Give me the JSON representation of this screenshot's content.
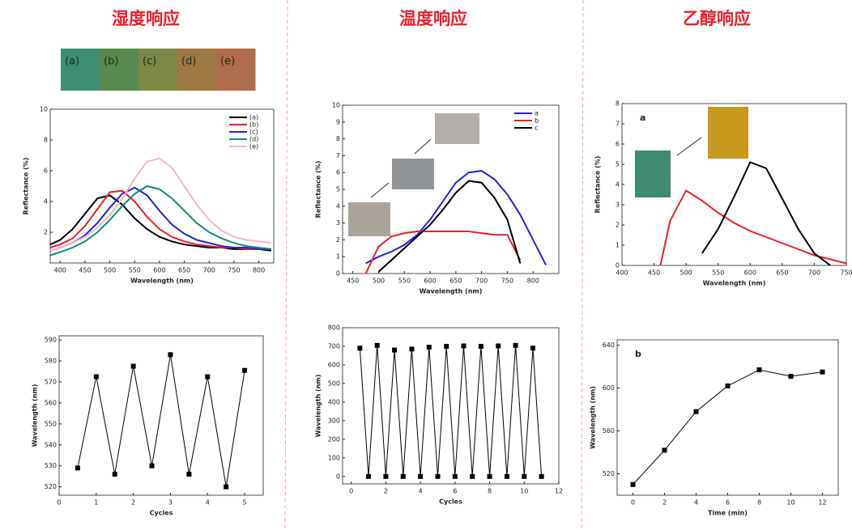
{
  "chart_data": [
    {
      "type": "line",
      "title": "湿度响应",
      "xlabel": "Wavelength (nm)",
      "ylabel": "Reflectance (%)",
      "swatches": {
        "labels": [
          "(a)",
          "(b)",
          "(c)",
          "(d)",
          "(e)"
        ],
        "colors": [
          "#3d8e74",
          "#58894f",
          "#7c8945",
          "#9c7a42",
          "#b06d4b"
        ]
      },
      "x": [
        380,
        400,
        425,
        450,
        475,
        500,
        525,
        550,
        575,
        600,
        625,
        650,
        675,
        700,
        725,
        750,
        775,
        800,
        825
      ],
      "series": [
        {
          "name": "(a)",
          "color": "#000000",
          "values": [
            1.2,
            1.5,
            2.2,
            3.2,
            4.2,
            4.4,
            3.8,
            2.9,
            2.2,
            1.7,
            1.4,
            1.2,
            1.1,
            1.0,
            1.0,
            0.9,
            0.9,
            0.9,
            0.8
          ]
        },
        {
          "name": "(b)",
          "color": "#e8202a",
          "values": [
            1.0,
            1.2,
            1.6,
            2.4,
            3.5,
            4.6,
            4.7,
            4.0,
            3.0,
            2.2,
            1.7,
            1.4,
            1.2,
            1.1,
            1.0,
            1.0,
            0.9,
            0.9,
            0.9
          ]
        },
        {
          "name": "(c)",
          "color": "#1f1fe0",
          "values": [
            0.8,
            1.0,
            1.3,
            1.8,
            2.6,
            3.6,
            4.5,
            4.9,
            4.4,
            3.4,
            2.5,
            1.9,
            1.5,
            1.3,
            1.1,
            1.0,
            1.0,
            0.9,
            0.9
          ]
        },
        {
          "name": "(d)",
          "color": "#138a7a",
          "values": [
            0.5,
            0.7,
            1.0,
            1.4,
            2.0,
            2.8,
            3.7,
            4.5,
            5.0,
            4.8,
            4.2,
            3.4,
            2.6,
            2.0,
            1.6,
            1.3,
            1.1,
            1.0,
            0.9
          ]
        },
        {
          "name": "(e)",
          "color": "#f4b6c2",
          "values": [
            0.8,
            1.0,
            1.3,
            1.7,
            2.3,
            3.1,
            4.2,
            5.5,
            6.6,
            6.8,
            6.2,
            5.0,
            3.8,
            2.8,
            2.1,
            1.7,
            1.5,
            1.4,
            1.3
          ]
        }
      ],
      "xlim": [
        380,
        830
      ],
      "xticks": [
        400,
        450,
        500,
        550,
        600,
        650,
        700,
        750,
        800
      ],
      "ylim": [
        0,
        10
      ],
      "yticks": [
        2,
        4,
        6,
        8,
        10
      ],
      "legend": "upper right"
    },
    {
      "type": "line",
      "marker": "square",
      "xlabel": "Cycles",
      "ylabel": "Wavelength (nm)",
      "x": [
        0.5,
        1,
        1.5,
        2,
        2.5,
        3,
        3.5,
        4,
        4.5,
        5
      ],
      "series": [
        {
          "color": "#000000",
          "values": [
            529,
            572.5,
            526,
            577.5,
            530,
            583,
            526,
            572.5,
            520,
            575.5
          ]
        }
      ],
      "xlim": [
        0,
        5.5
      ],
      "xticks": [
        0,
        1,
        2,
        3,
        4,
        5
      ],
      "ylim": [
        516,
        592
      ],
      "yticks": [
        520,
        530,
        540,
        550,
        560,
        570,
        580,
        590
      ]
    },
    {
      "type": "line",
      "title": "温度响应",
      "xlabel": "Wavelength (nm)",
      "ylabel": "Reflectance (%)",
      "x": [
        450,
        475,
        500,
        525,
        550,
        575,
        600,
        625,
        650,
        675,
        700,
        725,
        750,
        775,
        800,
        825,
        850
      ],
      "series": [
        {
          "name": "a",
          "color": "#1f1fe0",
          "values": [
            null,
            0.6,
            1.0,
            1.3,
            1.7,
            2.3,
            3.2,
            4.3,
            5.4,
            6.0,
            6.1,
            5.6,
            4.7,
            3.5,
            2.0,
            0.5,
            null
          ]
        },
        {
          "name": "b",
          "color": "#e8202a",
          "values": [
            null,
            0,
            1.6,
            2.2,
            2.4,
            2.5,
            2.5,
            2.5,
            2.5,
            2.5,
            2.4,
            2.3,
            2.3,
            0.8,
            null,
            null,
            null
          ]
        },
        {
          "name": "c",
          "color": "#000000",
          "values": [
            null,
            null,
            0.1,
            0.8,
            1.5,
            2.2,
            2.9,
            3.8,
            4.8,
            5.5,
            5.4,
            4.5,
            3.2,
            0.6,
            null,
            null,
            null
          ]
        }
      ],
      "xlim": [
        430,
        850
      ],
      "xticks": [
        450,
        500,
        550,
        600,
        650,
        700,
        750,
        800
      ],
      "ylim": [
        0,
        10
      ],
      "yticks": [
        0,
        1,
        2,
        3,
        4,
        5,
        6,
        7,
        8,
        9,
        10
      ],
      "legend": "upper right"
    },
    {
      "type": "line",
      "marker": "square",
      "xlabel": "Cycles",
      "ylabel": "Wavelength (nm)",
      "x": [
        0.5,
        1,
        1.5,
        2,
        2.5,
        3,
        3.5,
        4,
        4.5,
        5,
        5.5,
        6,
        6.5,
        7,
        7.5,
        8,
        8.5,
        9,
        9.5,
        10,
        10.5,
        11
      ],
      "series": [
        {
          "color": "#000000",
          "values": [
            690,
            0,
            705,
            0,
            680,
            0,
            685,
            0,
            695,
            0,
            700,
            0,
            702,
            0,
            700,
            0,
            702,
            0,
            705,
            0,
            690,
            0
          ]
        }
      ],
      "xlim": [
        -0.5,
        12
      ],
      "xticks": [
        0,
        2,
        4,
        6,
        8,
        10,
        12
      ],
      "ylim": [
        -40,
        800
      ],
      "yticks": [
        0,
        100,
        200,
        300,
        400,
        500,
        600,
        700,
        800
      ]
    },
    {
      "type": "line",
      "title": "乙醇响应",
      "annotation": "a",
      "xlabel": "Wavelength (nm)",
      "ylabel": "Reflectance (%)",
      "x": [
        460,
        475,
        500,
        525,
        550,
        575,
        600,
        625,
        650,
        675,
        700,
        725,
        750
      ],
      "series": [
        {
          "color": "#e8202a",
          "values": [
            0,
            2.2,
            3.7,
            3.2,
            2.6,
            2.1,
            1.7,
            1.4,
            1.1,
            0.8,
            0.5,
            0.3,
            0.1
          ]
        },
        {
          "color": "#000000",
          "values": [
            null,
            null,
            null,
            0.6,
            1.8,
            3.4,
            5.1,
            4.8,
            3.3,
            1.8,
            0.6,
            0,
            null
          ]
        }
      ],
      "xlim": [
        400,
        750
      ],
      "xticks": [
        400,
        450,
        500,
        550,
        600,
        650,
        700,
        750
      ],
      "ylim": [
        0,
        8
      ],
      "yticks": [
        0,
        1,
        2,
        3,
        4,
        5,
        6,
        7,
        8
      ]
    },
    {
      "type": "line",
      "marker": "square",
      "annotation": "b",
      "xlabel": "Time (min)",
      "ylabel": "Wavelength (nm)",
      "x": [
        0,
        2,
        4,
        6,
        8,
        10,
        12
      ],
      "series": [
        {
          "color": "#000000",
          "values": [
            510,
            542,
            578,
            602,
            617,
            611,
            615
          ]
        }
      ],
      "xlim": [
        -1,
        13
      ],
      "xticks": [
        0,
        2,
        4,
        6,
        8,
        10,
        12
      ],
      "ylim": [
        500,
        645
      ],
      "yticks": [
        520,
        560,
        600,
        640
      ]
    }
  ]
}
